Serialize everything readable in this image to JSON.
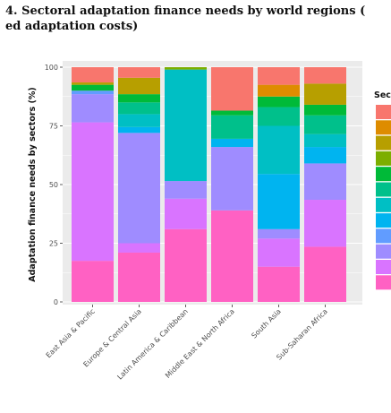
{
  "figure": {
    "title_line1": "4. Sectoral adaptation finance needs by world regions (",
    "title_line2": "ed adaptation costs)"
  },
  "chart_data": {
    "type": "bar",
    "stacked": true,
    "title": "",
    "xlabel": "",
    "ylabel": "Adaptation finance needs by sectors (%)",
    "ylim": [
      0,
      100
    ],
    "yticks": [
      0,
      25,
      50,
      75,
      100
    ],
    "grid": true,
    "legend": {
      "title": "Sec",
      "placement": "right"
    },
    "categories": [
      "East Asia & Pacific",
      "Europe & Central Asia",
      "Latin America & Caribbean",
      "Middle East & North Africa",
      "South Asia",
      "Sub-Saharan Africa"
    ],
    "series": [
      {
        "color": "#F8766D",
        "values": [
          6.5,
          4.5,
          0.0,
          18.5,
          7.5,
          7.0
        ]
      },
      {
        "color": "#DE8C00",
        "values": [
          0.0,
          0.0,
          0.0,
          0.0,
          5.0,
          0.0
        ]
      },
      {
        "color": "#B79F00",
        "values": [
          1.0,
          7.0,
          0.0,
          0.0,
          0.0,
          9.0
        ]
      },
      {
        "color": "#7CAE00",
        "values": [
          0.0,
          0.0,
          1.0,
          0.0,
          0.0,
          0.0
        ]
      },
      {
        "color": "#00BA38",
        "values": [
          2.5,
          3.5,
          0.0,
          2.0,
          4.5,
          4.5
        ]
      },
      {
        "color": "#00C08B",
        "values": [
          0.0,
          5.0,
          0.0,
          10.0,
          8.0,
          8.0
        ]
      },
      {
        "color": "#00BFC4",
        "values": [
          0.0,
          5.5,
          47.5,
          0.0,
          20.5,
          5.5
        ]
      },
      {
        "color": "#00B4F0",
        "values": [
          0.0,
          2.5,
          0.0,
          3.5,
          23.5,
          7.0
        ]
      },
      {
        "color": "#619CFF",
        "values": [
          1.5,
          0.0,
          0.0,
          0.0,
          0.0,
          0.0
        ]
      },
      {
        "color": "#9F8CFF",
        "values": [
          12.0,
          47.0,
          7.5,
          27.0,
          4.0,
          15.5
        ]
      },
      {
        "color": "#D974FF",
        "values": [
          59.0,
          4.0,
          13.0,
          0.0,
          12.0,
          20.0
        ]
      },
      {
        "color": "#FF61C3",
        "values": [
          17.5,
          21.0,
          31.0,
          39.0,
          15.0,
          23.5
        ]
      }
    ]
  }
}
